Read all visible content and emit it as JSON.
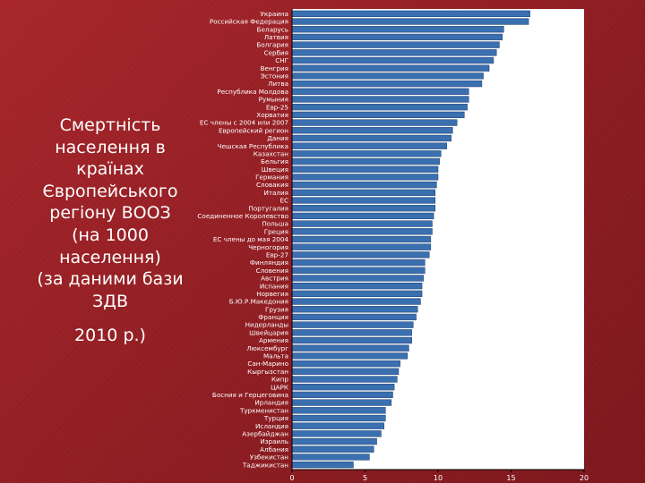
{
  "slide": {
    "title": "Смертність\nнаселення в\nкраїнах\nЄвропейського\nрегіону ВООЗ\n(на 1000\nнаселення)\n(за даними бази\nЗДВ",
    "year": "2010 р.)"
  },
  "colors": {
    "bar": "#3a6fb0",
    "bar_edge": "#1e3f6e",
    "plot_bg": "#ffffff",
    "text": "#ffffff",
    "axis": "#000000"
  },
  "chart_data": {
    "type": "bar",
    "orientation": "horizontal",
    "title": "",
    "xlabel": "",
    "ylabel": "",
    "xlim": [
      0,
      20
    ],
    "xticks": [
      0,
      5,
      10,
      15,
      20
    ],
    "grid": false,
    "legend": "none",
    "categories": [
      "Украина",
      "Российская Федерация",
      "Беларусь",
      "Латвия",
      "Болгария",
      "Сербия",
      "СНГ",
      "Венгрия",
      "Эстония",
      "Литва",
      "Республика Молдова",
      "Румыния",
      "Евр-25",
      "Хорватия",
      "ЕС члены с 2004 или 2007",
      "Европейский регион",
      "Дания",
      "Чешская Республика",
      "Казахстан",
      "Бельгия",
      "Швеция",
      "Германия",
      "Словакия",
      "Италия",
      "ЕС",
      "Португалия",
      "Соединенное Королевство",
      "Польша",
      "Греция",
      "ЕС члены до мая 2004",
      "Черногория",
      "Евр-27",
      "Финляндия",
      "Словения",
      "Австрия",
      "Испания",
      "Норвегия",
      "Б.Ю.Р.Македония",
      "Грузия",
      "Франция",
      "Нидерланды",
      "Швейцария",
      "Армения",
      "Люксембург",
      "Мальта",
      "Сан-Марино",
      "Кыргызстан",
      "Кипр",
      "ЦАРК",
      "Босния и Герцеговина",
      "Ирландия",
      "Туркменистан",
      "Турция",
      "Исландия",
      "Азербайджан",
      "Израиль",
      "Албания",
      "Узбекистан",
      "Таджикистан"
    ],
    "values": [
      16.3,
      16.2,
      14.5,
      14.4,
      14.2,
      14.0,
      13.8,
      13.5,
      13.1,
      13.0,
      12.1,
      12.1,
      12.0,
      11.8,
      11.3,
      11.0,
      10.9,
      10.6,
      10.2,
      10.1,
      10.0,
      10.0,
      9.9,
      9.8,
      9.8,
      9.8,
      9.7,
      9.6,
      9.6,
      9.5,
      9.5,
      9.4,
      9.1,
      9.1,
      9.0,
      8.9,
      8.9,
      8.8,
      8.6,
      8.5,
      8.3,
      8.2,
      8.2,
      8.0,
      7.9,
      7.4,
      7.3,
      7.2,
      7.0,
      6.9,
      6.8,
      6.4,
      6.4,
      6.3,
      6.1,
      5.8,
      5.6,
      5.3,
      4.2
    ]
  }
}
